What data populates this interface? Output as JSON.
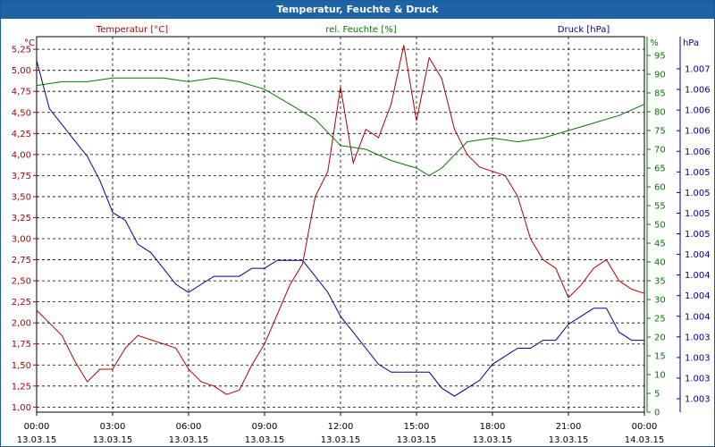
{
  "window": {
    "title": "Temperatur, Feuchte & Druck"
  },
  "chart_data": {
    "type": "line",
    "title": "Temperatur, Feuchte & Druck",
    "grid": true,
    "colors": {
      "temperature": "#b00000",
      "humidity": "#007a00",
      "pressure": "#000090",
      "titlebar": "#1e63a4"
    },
    "x": {
      "start": "13.03.15 00:00",
      "end": "14.03.15 00:00",
      "ticks": [
        {
          "time": "00:00",
          "date": "13.03.15"
        },
        {
          "time": "03:00",
          "date": "13.03.15"
        },
        {
          "time": "06:00",
          "date": "13.03.15"
        },
        {
          "time": "09:00",
          "date": "13.03.15"
        },
        {
          "time": "12:00",
          "date": "13.03.15"
        },
        {
          "time": "15:00",
          "date": "13.03.15"
        },
        {
          "time": "18:00",
          "date": "13.03.15"
        },
        {
          "time": "21:00",
          "date": "13.03.15"
        },
        {
          "time": "00:00",
          "date": "14.03.15"
        }
      ]
    },
    "axes": {
      "temperature": {
        "label": "Temperatur [°C]",
        "unit": "°C",
        "ylim": [
          0.94,
          5.4
        ],
        "tick_values": [
          1.0,
          1.25,
          1.5,
          1.75,
          2.0,
          2.25,
          2.5,
          2.75,
          3.0,
          3.25,
          3.5,
          3.75,
          4.0,
          4.25,
          4.5,
          4.75,
          5.0,
          5.25
        ],
        "tick_labels": [
          "1,00",
          "1,25",
          "1,50",
          "1,75",
          "2,00",
          "2,25",
          "2,50",
          "2,75",
          "3,00",
          "3,25",
          "3,50",
          "3,75",
          "4,00",
          "4,25",
          "4,50",
          "4,75",
          "5,00",
          "5,25"
        ]
      },
      "humidity": {
        "label": "rel. Feuchte [%]",
        "unit": "%",
        "ylim": [
          0,
          100
        ],
        "tick_values": [
          0,
          5,
          10,
          15,
          20,
          25,
          30,
          35,
          40,
          45,
          50,
          55,
          60,
          65,
          70,
          75,
          80,
          85,
          90,
          95
        ],
        "tick_labels": [
          "0",
          "5",
          "10",
          "15",
          "20",
          "25",
          "30",
          "35",
          "40",
          "45",
          "50",
          "55",
          "60",
          "65",
          "70",
          "75",
          "80",
          "85",
          "90",
          "95"
        ]
      },
      "pressure": {
        "label": "Druck [hPa]",
        "unit": "hPa",
        "tick_labels": [
          "1.003",
          "1.003",
          "1.003",
          "1.003",
          "1.004",
          "1.004",
          "1.004",
          "1.004",
          "1.005",
          "1.005",
          "1.005",
          "1.005",
          "1.006",
          "1.006",
          "1.006",
          "1.006",
          "1.007"
        ]
      }
    },
    "series": [
      {
        "name": "Temperatur [°C]",
        "axis": "temperature",
        "points": [
          [
            0,
            2.15
          ],
          [
            0.5,
            2.0
          ],
          [
            1,
            1.85
          ],
          [
            1.5,
            1.55
          ],
          [
            2,
            1.3
          ],
          [
            2.5,
            1.45
          ],
          [
            3,
            1.45
          ],
          [
            3.5,
            1.7
          ],
          [
            4,
            1.85
          ],
          [
            4.5,
            1.8
          ],
          [
            5,
            1.75
          ],
          [
            5.5,
            1.7
          ],
          [
            6,
            1.45
          ],
          [
            6.5,
            1.3
          ],
          [
            7,
            1.25
          ],
          [
            7.5,
            1.15
          ],
          [
            8,
            1.2
          ],
          [
            8.5,
            1.5
          ],
          [
            9,
            1.75
          ],
          [
            9.5,
            2.1
          ],
          [
            10,
            2.45
          ],
          [
            10.5,
            2.7
          ],
          [
            11,
            3.5
          ],
          [
            11.5,
            3.8
          ],
          [
            12,
            4.8
          ],
          [
            12.5,
            3.9
          ],
          [
            13,
            4.3
          ],
          [
            13.5,
            4.2
          ],
          [
            14,
            4.6
          ],
          [
            14.5,
            5.3
          ],
          [
            15,
            4.4
          ],
          [
            15.5,
            5.15
          ],
          [
            16,
            4.9
          ],
          [
            16.5,
            4.3
          ],
          [
            17,
            4.0
          ],
          [
            17.5,
            3.85
          ],
          [
            18,
            3.8
          ],
          [
            18.5,
            3.75
          ],
          [
            19,
            3.5
          ],
          [
            19.5,
            3.0
          ],
          [
            20,
            2.75
          ],
          [
            20.5,
            2.65
          ],
          [
            21,
            2.3
          ],
          [
            21.5,
            2.45
          ],
          [
            22,
            2.65
          ],
          [
            22.5,
            2.75
          ],
          [
            23,
            2.5
          ],
          [
            23.5,
            2.4
          ],
          [
            24,
            2.35
          ]
        ]
      },
      {
        "name": "rel. Feuchte [%]",
        "axis": "humidity",
        "points": [
          [
            0,
            87
          ],
          [
            1,
            88
          ],
          [
            2,
            88
          ],
          [
            3,
            89
          ],
          [
            4,
            89
          ],
          [
            5,
            89
          ],
          [
            6,
            88
          ],
          [
            7,
            89
          ],
          [
            8,
            88
          ],
          [
            9,
            86
          ],
          [
            10,
            82
          ],
          [
            11,
            78
          ],
          [
            12,
            71
          ],
          [
            13,
            70
          ],
          [
            14,
            67
          ],
          [
            15,
            65
          ],
          [
            15.5,
            63
          ],
          [
            16,
            65
          ],
          [
            17,
            72
          ],
          [
            18,
            73
          ],
          [
            19,
            72
          ],
          [
            20,
            73
          ],
          [
            21,
            75
          ],
          [
            22,
            77
          ],
          [
            23,
            79
          ],
          [
            24,
            82
          ]
        ]
      },
      {
        "name": "Druck [hPa]",
        "axis": "pressure",
        "points": [
          [
            0,
            1.0071
          ],
          [
            0.5,
            1.0065
          ],
          [
            1,
            1.0063
          ],
          [
            1.5,
            1.0061
          ],
          [
            2,
            1.0059
          ],
          [
            2.5,
            1.0056
          ],
          [
            3,
            1.0052
          ],
          [
            3.5,
            1.0051
          ],
          [
            4,
            1.0048
          ],
          [
            4.5,
            1.0047
          ],
          [
            5,
            1.0045
          ],
          [
            5.5,
            1.0043
          ],
          [
            6,
            1.0042
          ],
          [
            6.5,
            1.0043
          ],
          [
            7,
            1.0044
          ],
          [
            7.5,
            1.0044
          ],
          [
            8,
            1.0044
          ],
          [
            8.5,
            1.0045
          ],
          [
            9,
            1.0045
          ],
          [
            9.5,
            1.0046
          ],
          [
            10,
            1.0046
          ],
          [
            10.5,
            1.0046
          ],
          [
            11,
            1.0044
          ],
          [
            11.5,
            1.0042
          ],
          [
            12,
            1.0039
          ],
          [
            12.5,
            1.0037
          ],
          [
            13,
            1.0035
          ],
          [
            13.5,
            1.0033
          ],
          [
            14,
            1.0032
          ],
          [
            14.5,
            1.0032
          ],
          [
            15,
            1.0032
          ],
          [
            15.5,
            1.0032
          ],
          [
            16,
            1.003
          ],
          [
            16.5,
            1.0029
          ],
          [
            17,
            1.003
          ],
          [
            17.5,
            1.0031
          ],
          [
            18,
            1.0033
          ],
          [
            18.5,
            1.0034
          ],
          [
            19,
            1.0035
          ],
          [
            19.5,
            1.0035
          ],
          [
            20,
            1.0036
          ],
          [
            20.5,
            1.0036
          ],
          [
            21,
            1.0038
          ],
          [
            21.5,
            1.0039
          ],
          [
            22,
            1.004
          ],
          [
            22.5,
            1.004
          ],
          [
            23,
            1.0037
          ],
          [
            23.5,
            1.0036
          ],
          [
            24,
            1.0036
          ]
        ]
      }
    ]
  }
}
